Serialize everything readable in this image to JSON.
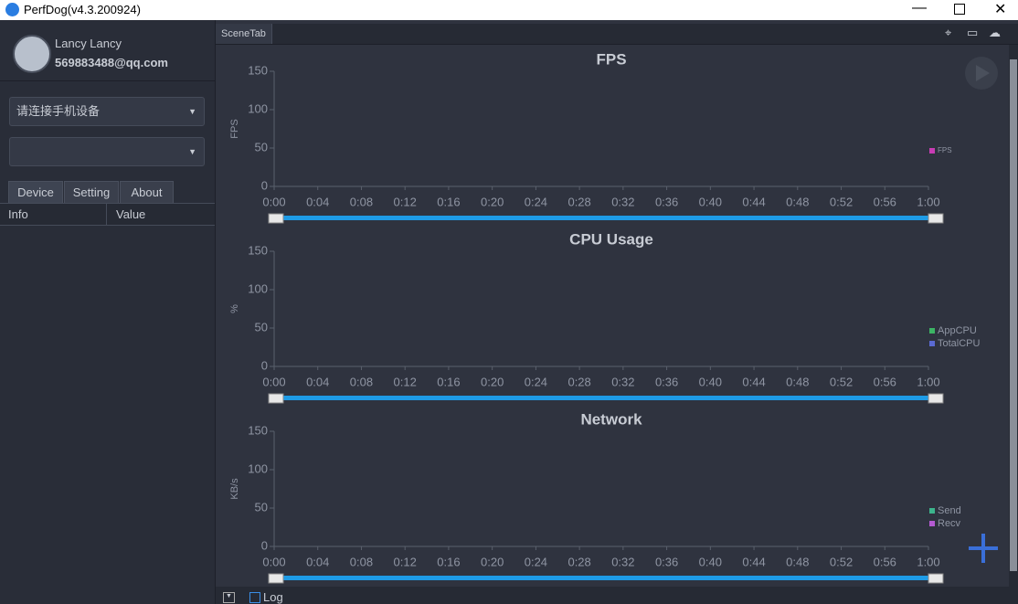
{
  "window": {
    "title": "PerfDog(v4.3.200924)"
  },
  "sidebar": {
    "user_name": "Lancy Lancy",
    "email": "569883488@qq.com",
    "device_select": "请连接手机设备",
    "tabs": [
      "Device",
      "Setting",
      "About"
    ],
    "table_headers": [
      "Info",
      "Value"
    ]
  },
  "main": {
    "tab": "SceneTab",
    "log": "Log"
  },
  "chart_data": [
    {
      "type": "line",
      "title": "FPS",
      "y_label": "FPS",
      "legend": "right",
      "series": [
        {
          "name": "FPS",
          "color": "#c83cb4"
        }
      ],
      "ylim": [
        0,
        150
      ],
      "yticks": [
        0,
        50,
        100,
        150
      ],
      "xlim": [
        0,
        60
      ],
      "xticks": [
        {
          "value": 0,
          "label": "0:00"
        },
        {
          "value": 4,
          "label": "0:04"
        },
        {
          "value": 8,
          "label": "0:08"
        },
        {
          "value": 12,
          "label": "0:12"
        },
        {
          "value": 16,
          "label": "0:16"
        },
        {
          "value": 20,
          "label": "0:20"
        },
        {
          "value": 24,
          "label": "0:24"
        },
        {
          "value": 28,
          "label": "0:28"
        },
        {
          "value": 32,
          "label": "0:32"
        },
        {
          "value": 36,
          "label": "0:36"
        },
        {
          "value": 40,
          "label": "0:40"
        },
        {
          "value": 44,
          "label": "0:44"
        },
        {
          "value": 48,
          "label": "0:48"
        },
        {
          "value": 52,
          "label": "0:52"
        },
        {
          "value": 56,
          "label": "0:56"
        },
        {
          "value": 60,
          "label": "1:00"
        }
      ]
    },
    {
      "type": "line",
      "title": "CPU Usage",
      "y_label": "%",
      "legend": "right",
      "series": [
        {
          "name": "AppCPU",
          "color": "#3cb464"
        },
        {
          "name": "TotalCPU",
          "color": "#5a6ad2"
        }
      ],
      "ylim": [
        0,
        150
      ],
      "yticks": [
        0,
        50,
        100,
        150
      ],
      "xlim": [
        0,
        60
      ],
      "xticks": [
        {
          "value": 0,
          "label": "0:00"
        },
        {
          "value": 4,
          "label": "0:04"
        },
        {
          "value": 8,
          "label": "0:08"
        },
        {
          "value": 12,
          "label": "0:12"
        },
        {
          "value": 16,
          "label": "0:16"
        },
        {
          "value": 20,
          "label": "0:20"
        },
        {
          "value": 24,
          "label": "0:24"
        },
        {
          "value": 28,
          "label": "0:28"
        },
        {
          "value": 32,
          "label": "0:32"
        },
        {
          "value": 36,
          "label": "0:36"
        },
        {
          "value": 40,
          "label": "0:40"
        },
        {
          "value": 44,
          "label": "0:44"
        },
        {
          "value": 48,
          "label": "0:48"
        },
        {
          "value": 52,
          "label": "0:52"
        },
        {
          "value": 56,
          "label": "0:56"
        },
        {
          "value": 60,
          "label": "1:00"
        }
      ]
    },
    {
      "type": "line",
      "title": "Network",
      "y_label": "KB/s",
      "legend": "right",
      "series": [
        {
          "name": "Send",
          "color": "#3cb48c"
        },
        {
          "name": "Recv",
          "color": "#b45ad2"
        }
      ],
      "ylim": [
        0,
        150
      ],
      "yticks": [
        0,
        50,
        100,
        150
      ],
      "xlim": [
        0,
        60
      ],
      "xticks": [
        {
          "value": 0,
          "label": "0:00"
        },
        {
          "value": 4,
          "label": "0:04"
        },
        {
          "value": 8,
          "label": "0:08"
        },
        {
          "value": 12,
          "label": "0:12"
        },
        {
          "value": 16,
          "label": "0:16"
        },
        {
          "value": 20,
          "label": "0:20"
        },
        {
          "value": 24,
          "label": "0:24"
        },
        {
          "value": 28,
          "label": "0:28"
        },
        {
          "value": 32,
          "label": "0:32"
        },
        {
          "value": 36,
          "label": "0:36"
        },
        {
          "value": 40,
          "label": "0:40"
        },
        {
          "value": 44,
          "label": "0:44"
        },
        {
          "value": 48,
          "label": "0:48"
        },
        {
          "value": 52,
          "label": "0:52"
        },
        {
          "value": 56,
          "label": "0:56"
        },
        {
          "value": 60,
          "label": "1:00"
        }
      ]
    }
  ]
}
